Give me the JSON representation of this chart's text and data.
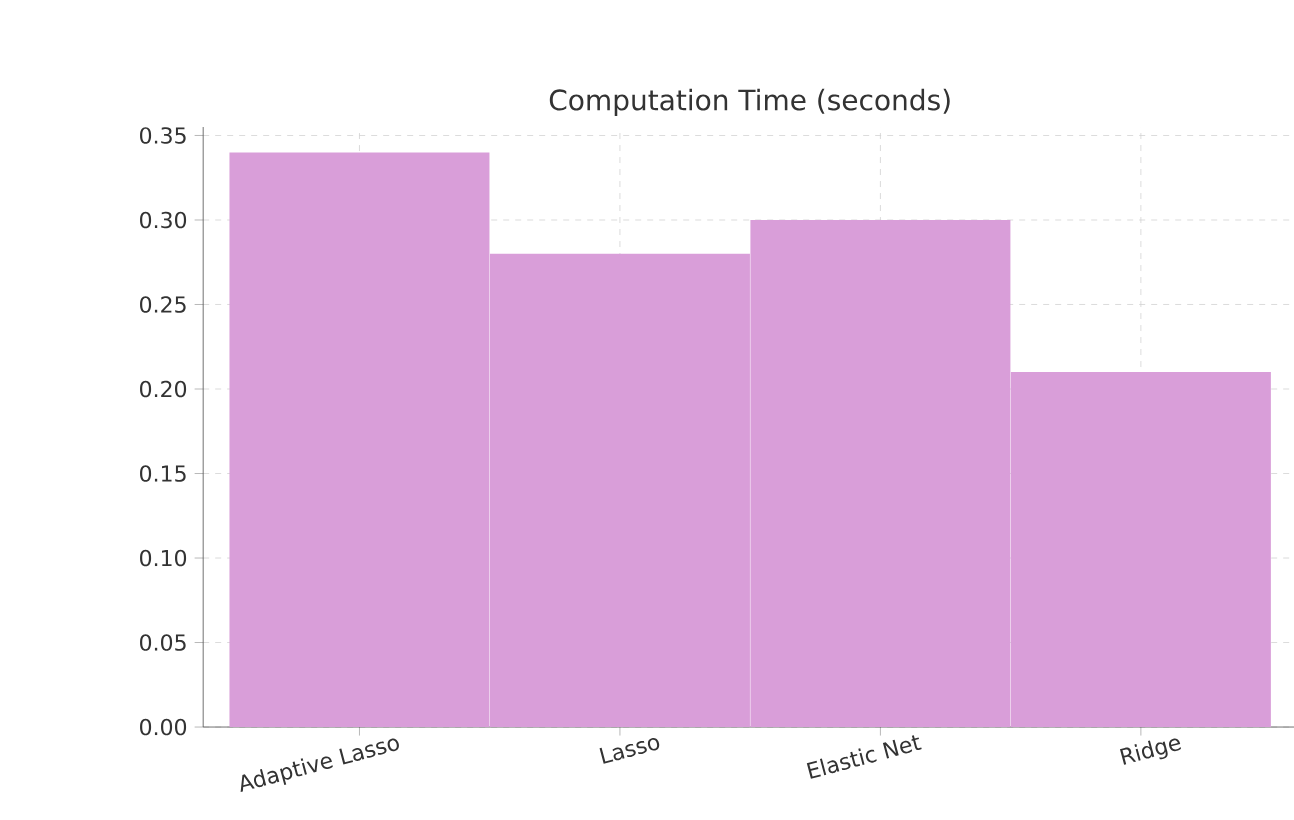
{
  "chart_data": {
    "type": "bar",
    "title": "Computation Time (seconds)",
    "categories": [
      "Adaptive Lasso",
      "Lasso",
      "Elastic Net",
      "Ridge"
    ],
    "values": [
      0.34,
      0.28,
      0.3,
      0.21
    ],
    "color": "#d99ed9",
    "ylim": [
      0,
      0.355
    ],
    "yticks": [
      {
        "value": 0,
        "label": "0.00"
      },
      {
        "value": 0.05,
        "label": "0.05"
      },
      {
        "value": 0.1,
        "label": "0.10"
      },
      {
        "value": 0.15,
        "label": "0.15"
      },
      {
        "value": 0.2,
        "label": "0.20"
      },
      {
        "value": 0.25,
        "label": "0.25"
      },
      {
        "value": 0.3,
        "label": "0.30"
      },
      {
        "value": 0.35,
        "label": "0.35"
      }
    ],
    "grid": true
  }
}
